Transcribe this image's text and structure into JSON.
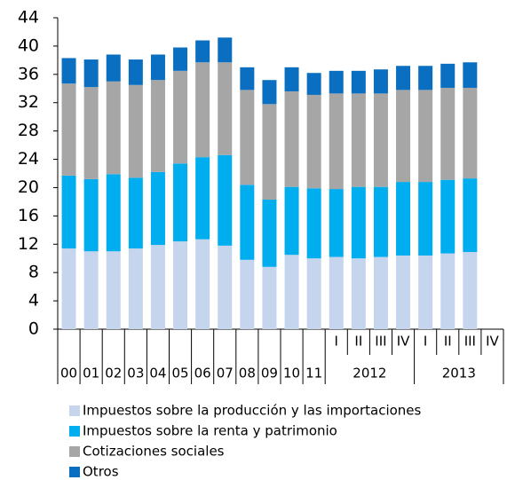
{
  "chart_data": {
    "type": "stacked_bar",
    "categories": [
      "00",
      "01",
      "02",
      "03",
      "04",
      "05",
      "06",
      "07",
      "08",
      "09",
      "10",
      "11",
      "I",
      "II",
      "III",
      "IV",
      "I",
      "II",
      "III",
      "IV"
    ],
    "groups": [
      {
        "label": "2012",
        "size": 4
      },
      {
        "label": "2013",
        "size": 4
      }
    ],
    "series": [
      {
        "name": "Impuestos sobre la producción y las importaciones",
        "color": "#c5d5ee",
        "values": [
          11.4,
          11.0,
          11.0,
          11.4,
          11.9,
          12.4,
          12.7,
          11.8,
          9.8,
          8.8,
          10.5,
          10.0,
          10.2,
          10.0,
          10.2,
          10.4,
          10.4,
          10.7,
          10.9,
          null
        ]
      },
      {
        "name": "Impuestos sobre la renta y patrimonio",
        "color": "#00aeef",
        "values": [
          10.3,
          10.2,
          10.9,
          10.0,
          10.3,
          11.0,
          11.6,
          12.8,
          10.6,
          9.5,
          9.6,
          9.9,
          9.6,
          10.1,
          9.9,
          10.4,
          10.4,
          10.4,
          10.4,
          null
        ]
      },
      {
        "name": "Cotizaciones sociales",
        "color": "#a6a6a6",
        "values": [
          13.0,
          13.0,
          13.1,
          13.1,
          13.0,
          13.1,
          13.4,
          13.1,
          13.4,
          13.5,
          13.5,
          13.2,
          13.5,
          13.2,
          13.2,
          13.0,
          13.0,
          13.0,
          12.8,
          null
        ]
      },
      {
        "name": "Otros",
        "color": "#0a6fc0",
        "values": [
          3.6,
          3.9,
          3.8,
          3.6,
          3.6,
          3.3,
          3.1,
          3.5,
          3.2,
          3.4,
          3.4,
          3.1,
          3.2,
          3.2,
          3.4,
          3.4,
          3.4,
          3.4,
          3.6,
          null
        ]
      }
    ],
    "ylim": [
      0,
      44
    ],
    "yticks": [
      0,
      4,
      8,
      12,
      16,
      20,
      24,
      28,
      32,
      36,
      40,
      44
    ]
  }
}
